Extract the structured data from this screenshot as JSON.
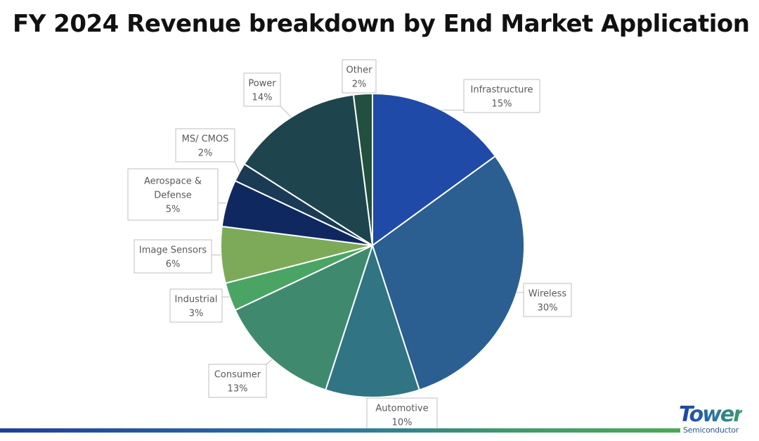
{
  "title": "FY 2024 Revenue breakdown by End Market Application",
  "logo": {
    "word": "Tower",
    "sub": "Semiconductor"
  },
  "chart_data": {
    "type": "pie",
    "title": "FY 2024 Revenue breakdown by End Market Application",
    "unit": "%",
    "slices": [
      {
        "label": "Infrastructure",
        "value": 15,
        "display": "15%",
        "color": "#1f4aa8"
      },
      {
        "label": "Wireless",
        "value": 30,
        "display": "30%",
        "color": "#2b5f91"
      },
      {
        "label": "Automotive",
        "value": 10,
        "display": "10%",
        "color": "#317483"
      },
      {
        "label": "Consumer",
        "value": 13,
        "display": "13%",
        "color": "#3f8a6f"
      },
      {
        "label": "Industrial",
        "value": 3,
        "display": "3%",
        "color": "#4aa564"
      },
      {
        "label": "Image Sensors",
        "value": 6,
        "display": "6%",
        "color": "#7daa58"
      },
      {
        "label": "Aerospace & Defense",
        "value": 5,
        "display": "5%",
        "color": "#102860"
      },
      {
        "label": "MS/ CMOS",
        "value": 2,
        "display": "2%",
        "color": "#1a3a55"
      },
      {
        "label": "Power",
        "value": 14,
        "display": "14%",
        "color": "#1e454d"
      },
      {
        "label": "Other",
        "value": 2,
        "display": "2%",
        "color": "#22503f"
      }
    ]
  }
}
